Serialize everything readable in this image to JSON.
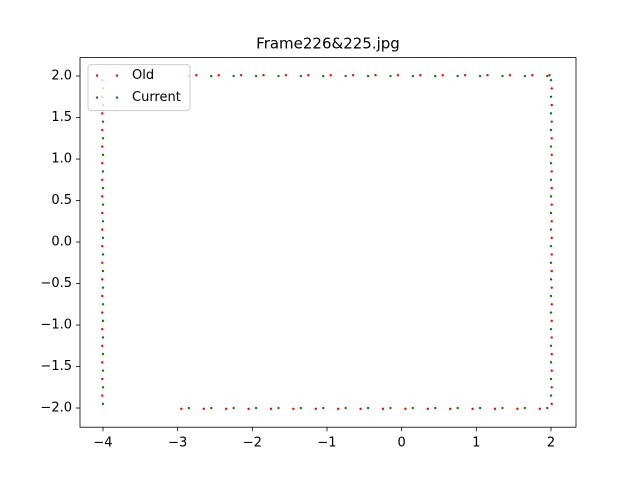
{
  "chart_data": {
    "type": "scatter",
    "title": "Frame226&225.jpg",
    "xlim": [
      -4.308,
      2.335
    ],
    "ylim": [
      -2.231,
      2.222
    ],
    "xticks": [
      {
        "value": -4,
        "label": "−4"
      },
      {
        "value": -3,
        "label": "−3"
      },
      {
        "value": -2,
        "label": "−2"
      },
      {
        "value": -1,
        "label": "−1"
      },
      0,
      1,
      2
    ],
    "yticks": [
      {
        "value": -2,
        "label": "−2.0"
      },
      {
        "value": -1.5,
        "label": "−1.5"
      },
      {
        "value": -1,
        "label": "−1.0"
      },
      {
        "value": -0.5,
        "label": "−0.5"
      },
      {
        "value": 0,
        "label": "0.0"
      },
      0.5,
      {
        "value": 1,
        "label": "1.0"
      },
      1.5,
      {
        "value": 2,
        "label": "2.0"
      }
    ],
    "legend": "upper left",
    "series": [
      {
        "name": "Old",
        "color": "#ff0000",
        "x": [
          -4.01,
          -4.01,
          -4.01,
          -4.01,
          -4.01,
          -4.01,
          -4.01,
          -4.01,
          -4.01,
          -4.01,
          -4.01,
          -4.01,
          -4.01,
          -4.01,
          -4.01,
          -4.01,
          -4.01,
          -4.01,
          -4.01,
          -4.01,
          -2.75,
          -2.45,
          -2.15,
          -1.85,
          -1.55,
          -1.25,
          -0.95,
          -0.65,
          -0.35,
          -0.05,
          0.25,
          0.55,
          0.85,
          1.15,
          1.45,
          1.75,
          1.98,
          2.01,
          2.01,
          2.01,
          2.01,
          2.01,
          2.01,
          2.01,
          2.01,
          2.01,
          2.01,
          2.01,
          2.01,
          2.01,
          2.01,
          2.01,
          2.01,
          2.01,
          2.01,
          2.01,
          2.01,
          1.85,
          1.55,
          1.25,
          0.95,
          0.65,
          0.35,
          0.05,
          -0.25,
          -0.55,
          -0.85,
          -1.15,
          -1.45,
          -1.75,
          -2.05,
          -2.35,
          -2.65,
          -2.95
        ],
        "y": [
          -1.85,
          -1.65,
          -1.45,
          -1.25,
          -1.05,
          -0.85,
          -0.65,
          -0.45,
          -0.25,
          -0.05,
          0.15,
          0.35,
          0.55,
          0.75,
          0.95,
          1.15,
          1.35,
          1.55,
          1.75,
          1.95,
          2.01,
          2.01,
          2.01,
          2.01,
          2.01,
          2.01,
          2.01,
          2.01,
          2.01,
          2.01,
          2.01,
          2.01,
          2.01,
          2.01,
          2.01,
          2.01,
          2.01,
          1.85,
          1.65,
          1.45,
          1.25,
          1.05,
          0.85,
          0.65,
          0.45,
          0.25,
          0.05,
          -0.15,
          -0.35,
          -0.55,
          -0.75,
          -0.95,
          -1.15,
          -1.35,
          -1.55,
          -1.75,
          -1.95,
          -2.01,
          -2.01,
          -2.01,
          -2.01,
          -2.01,
          -2.01,
          -2.01,
          -2.01,
          -2.01,
          -2.01,
          -2.01,
          -2.01,
          -2.01,
          -2.01,
          -2.01,
          -2.01,
          -2.01
        ]
      },
      {
        "name": "Current",
        "color": "#008000",
        "x": [
          -4.0,
          -4.0,
          -4.0,
          -4.0,
          -4.0,
          -4.0,
          -4.0,
          -4.0,
          -4.0,
          -4.0,
          -4.0,
          -4.0,
          -4.0,
          -4.0,
          -4.0,
          -4.0,
          -4.0,
          -4.0,
          -4.0,
          -4.0,
          -2.85,
          -2.55,
          -2.25,
          -1.95,
          -1.65,
          -1.35,
          -1.05,
          -0.75,
          -0.45,
          -0.15,
          0.15,
          0.45,
          0.75,
          1.05,
          1.35,
          1.65,
          1.95,
          2.0,
          2.0,
          2.0,
          2.0,
          2.0,
          2.0,
          2.0,
          2.0,
          2.0,
          2.0,
          2.0,
          2.0,
          2.0,
          2.0,
          2.0,
          2.0,
          2.0,
          2.0,
          2.0,
          2.0,
          1.95,
          1.65,
          1.35,
          1.05,
          0.75,
          0.45,
          0.15,
          -0.15,
          -0.45,
          -0.75,
          -1.05,
          -1.35,
          -1.65,
          -1.95,
          -2.25,
          -2.55,
          -2.85
        ],
        "y": [
          -1.95,
          -1.75,
          -1.55,
          -1.35,
          -1.15,
          -0.95,
          -0.75,
          -0.55,
          -0.35,
          -0.15,
          0.05,
          0.25,
          0.45,
          0.65,
          0.85,
          1.05,
          1.25,
          1.45,
          1.65,
          1.85,
          2.0,
          2.0,
          2.0,
          2.0,
          2.0,
          2.0,
          2.0,
          2.0,
          2.0,
          2.0,
          2.0,
          2.0,
          2.0,
          2.0,
          2.0,
          2.0,
          2.0,
          1.95,
          1.75,
          1.55,
          1.35,
          1.15,
          0.95,
          0.75,
          0.55,
          0.35,
          0.15,
          -0.05,
          -0.25,
          -0.45,
          -0.65,
          -0.85,
          -1.05,
          -1.25,
          -1.45,
          -1.65,
          -1.85,
          -2.0,
          -2.0,
          -2.0,
          -2.0,
          -2.0,
          -2.0,
          -2.0,
          -2.0,
          -2.0,
          -2.0,
          -2.0,
          -2.0,
          -2.0,
          -2.0,
          -2.0,
          -2.0,
          -2.0
        ]
      }
    ]
  }
}
